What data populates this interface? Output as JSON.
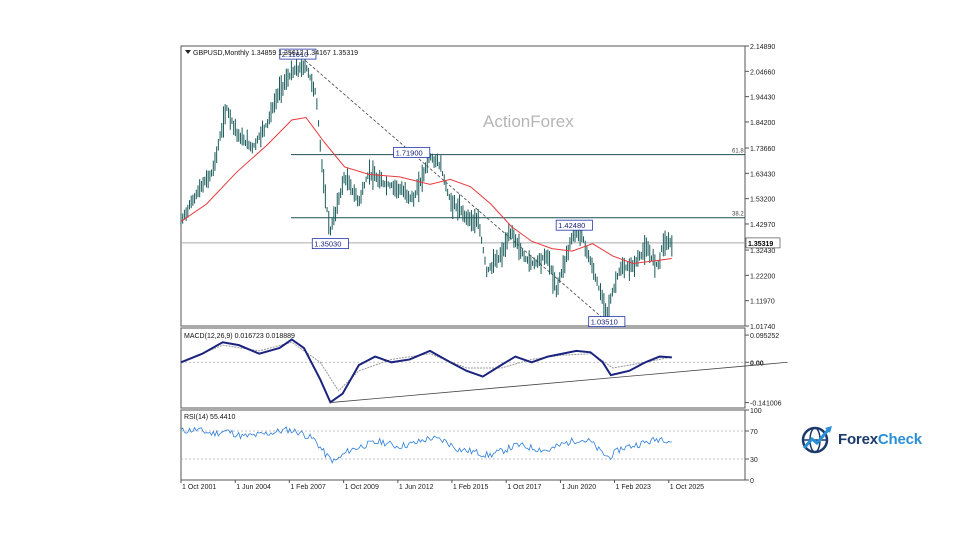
{
  "watermark": "ActionForex",
  "brand": {
    "name_part1": "Forex",
    "name_part2": "Check",
    "logo_icon": "globe-chart-logo-icon"
  },
  "colors": {
    "price_bars": "#1a5a5a",
    "sma_line": "#e8383c",
    "trendline": "#444444",
    "macd_line": "#1a237e",
    "macd_signal": "#999999",
    "rsi_line": "#2f7fd9",
    "panel_border": "#555555",
    "level_line": "#1d4f52"
  },
  "chart_data": [
    {
      "type": "ohlc",
      "title": "GBPUSD,Monthly  1.34859 1.35612 1.34167 1.35319",
      "ylim": [
        1.0174,
        2.1489
      ],
      "yticks": [
        "2.14890",
        "2.04660",
        "1.94430",
        "1.84200",
        "1.73660",
        "1.63430",
        "1.53200",
        "1.42970",
        "1.32430",
        "1.22200",
        "1.11970",
        "1.01740"
      ],
      "current_price": "1.35319",
      "x_start": 2001.75,
      "x_end": 2029.5,
      "series": [
        {
          "name": "price",
          "x": [
            2001.75,
            2002.5,
            2003.3,
            2004.0,
            2004.6,
            2005.3,
            2006.0,
            2006.6,
            2007.2,
            2007.9,
            2008.4,
            2008.8,
            2009.1,
            2009.8,
            2010.5,
            2011.0,
            2011.5,
            2012.3,
            2013.2,
            2014.0,
            2014.5,
            2015.0,
            2015.8,
            2016.4,
            2016.8,
            2017.5,
            2018.0,
            2018.6,
            2019.0,
            2019.8,
            2020.2,
            2021.0,
            2021.4,
            2022.0,
            2022.7,
            2023.3,
            2024.0,
            2024.6,
            2025.2,
            2025.5,
            2025.9
          ],
          "y": [
            1.44,
            1.55,
            1.64,
            1.9,
            1.78,
            1.74,
            1.84,
            1.97,
            2.04,
            2.07,
            1.95,
            1.56,
            1.4,
            1.62,
            1.52,
            1.64,
            1.6,
            1.58,
            1.53,
            1.7,
            1.67,
            1.52,
            1.46,
            1.43,
            1.24,
            1.3,
            1.4,
            1.3,
            1.27,
            1.3,
            1.16,
            1.38,
            1.4,
            1.25,
            1.07,
            1.24,
            1.26,
            1.33,
            1.26,
            1.36,
            1.35319
          ]
        },
        {
          "name": "sma",
          "x": [
            2001.75,
            2003.0,
            2004.5,
            2006.0,
            2007.2,
            2007.9,
            2008.8,
            2009.8,
            2011.0,
            2012.5,
            2014.0,
            2015.0,
            2016.0,
            2017.0,
            2018.0,
            2019.0,
            2020.0,
            2021.0,
            2022.0,
            2023.0,
            2024.0,
            2025.0,
            2025.9
          ],
          "y": [
            1.44,
            1.51,
            1.64,
            1.75,
            1.85,
            1.86,
            1.76,
            1.66,
            1.63,
            1.62,
            1.59,
            1.61,
            1.58,
            1.51,
            1.42,
            1.36,
            1.33,
            1.32,
            1.35,
            1.3,
            1.27,
            1.28,
            1.29
          ]
        }
      ],
      "levels": [
        {
          "value": 1.71,
          "label": "61.8"
        },
        {
          "value": 1.455,
          "label": "38.2"
        }
      ],
      "annotations": [
        {
          "text": "2.11610",
          "x": 2007.5,
          "y": 2.1161
        },
        {
          "text": "1.71900",
          "x": 2013.1,
          "y": 1.719
        },
        {
          "text": "1.35030",
          "x": 2009.1,
          "y": 1.3503
        },
        {
          "text": "1.42480",
          "x": 2021.1,
          "y": 1.4248
        },
        {
          "text": "1.03510",
          "x": 2022.7,
          "y": 1.0351
        }
      ],
      "trendline": {
        "x": [
          2007.5,
          2022.7
        ],
        "y": [
          2.1161,
          1.0351
        ]
      }
    },
    {
      "type": "line",
      "title": "MACD(12,26,9) 0.016723 0.018889",
      "ylim": [
        -0.16,
        0.12
      ],
      "yticks": [
        "0.095252",
        "0.00",
        "-0.141006"
      ],
      "series": [
        {
          "name": "macd",
          "x": [
            2001.75,
            2002.8,
            2003.8,
            2004.6,
            2005.6,
            2006.6,
            2007.2,
            2007.8,
            2008.6,
            2009.1,
            2009.7,
            2010.5,
            2011.3,
            2012.1,
            2013.0,
            2014.0,
            2015.0,
            2015.8,
            2016.6,
            2017.5,
            2018.2,
            2019.0,
            2019.8,
            2020.5,
            2021.2,
            2021.9,
            2022.5,
            2022.9,
            2023.8,
            2024.6,
            2025.3,
            2025.9
          ],
          "y": [
            0.0,
            0.03,
            0.07,
            0.06,
            0.03,
            0.05,
            0.08,
            0.05,
            -0.06,
            -0.14,
            -0.11,
            -0.01,
            0.02,
            0.0,
            0.01,
            0.04,
            0.0,
            -0.03,
            -0.05,
            -0.01,
            0.02,
            0.0,
            0.02,
            0.03,
            0.04,
            0.035,
            0.0,
            -0.045,
            -0.03,
            0.0,
            0.02,
            0.017
          ]
        },
        {
          "name": "signal",
          "x": [
            2001.75,
            2003.8,
            2005.6,
            2007.2,
            2008.6,
            2009.5,
            2010.5,
            2012.1,
            2014.0,
            2015.8,
            2017.5,
            2019.0,
            2020.5,
            2022.0,
            2023.0,
            2024.6,
            2025.9
          ],
          "y": [
            0.0,
            0.06,
            0.04,
            0.07,
            0.0,
            -0.1,
            -0.03,
            0.01,
            0.03,
            -0.02,
            -0.02,
            0.01,
            0.025,
            0.03,
            -0.02,
            0.0,
            0.019
          ]
        }
      ],
      "trendline": {
        "x": [
          2009.1,
          2031.6
        ],
        "y": [
          -0.141,
          0.0
        ]
      }
    },
    {
      "type": "line",
      "title": "RSI(14) 55.4410",
      "ylim": [
        0,
        100
      ],
      "yticks": [
        "100",
        "70",
        "30",
        "0"
      ],
      "levels": [
        70,
        30
      ],
      "series": [
        {
          "name": "rsi",
          "x": [
            2001.75,
            2002.5,
            2003.3,
            2004.0,
            2004.8,
            2005.5,
            2006.3,
            2007.0,
            2007.6,
            2008.3,
            2008.9,
            2009.3,
            2010.0,
            2010.8,
            2011.6,
            2012.4,
            2013.2,
            2014.0,
            2014.7,
            2015.4,
            2016.2,
            2016.9,
            2017.6,
            2018.3,
            2019.0,
            2019.8,
            2020.6,
            2021.3,
            2021.9,
            2022.4,
            2022.8,
            2023.4,
            2024.1,
            2024.8,
            2025.4,
            2025.9
          ],
          "y": [
            70,
            72,
            66,
            70,
            62,
            64,
            68,
            72,
            68,
            58,
            35,
            26,
            42,
            50,
            55,
            48,
            52,
            60,
            56,
            44,
            40,
            35,
            42,
            50,
            46,
            42,
            52,
            58,
            55,
            40,
            32,
            45,
            50,
            55,
            60,
            55
          ]
        }
      ]
    }
  ],
  "xaxis_labels": [
    "1 Oct 2001",
    "1 Jun 2004",
    "1 Feb 2007",
    "1 Oct 2009",
    "1 Jun 2012",
    "1 Feb 2015",
    "1 Oct 2017",
    "1 Jun 2020",
    "1 Feb 2023",
    "1 Oct 2025"
  ]
}
